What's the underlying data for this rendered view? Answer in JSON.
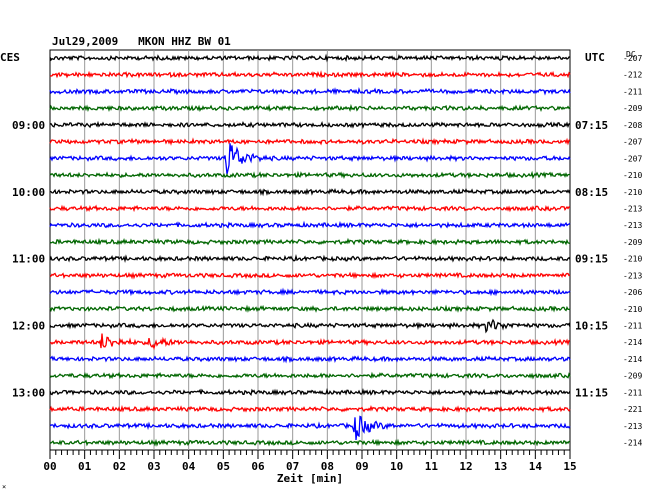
{
  "chart_data": {
    "type": "line",
    "title": "Jul29,2009   MKON HHZ BW 01",
    "left_axis_label": "CES",
    "right_axis_label": "UTC",
    "offset_column_label": "DC",
    "xlabel": "Zeit [min]",
    "xlim": [
      0,
      15
    ],
    "x_ticks": [
      "00",
      "01",
      "02",
      "03",
      "04",
      "05",
      "06",
      "07",
      "08",
      "09",
      "10",
      "11",
      "12",
      "13",
      "14",
      "15"
    ],
    "grid": true,
    "trace_colors": [
      "#000000",
      "#ff0000",
      "#0000ff",
      "#006600"
    ],
    "left_time_labels": [
      {
        "trace": 4,
        "label": "09:00"
      },
      {
        "trace": 8,
        "label": "10:00"
      },
      {
        "trace": 12,
        "label": "11:00"
      },
      {
        "trace": 16,
        "label": "12:00"
      },
      {
        "trace": 20,
        "label": "13:00"
      }
    ],
    "right_time_labels": [
      {
        "trace": 4,
        "label": "07:15"
      },
      {
        "trace": 8,
        "label": "08:15"
      },
      {
        "trace": 12,
        "label": "09:15"
      },
      {
        "trace": 16,
        "label": "10:15"
      },
      {
        "trace": 20,
        "label": "11:15"
      }
    ],
    "dc_offsets": [
      "-207",
      "-212",
      "-211",
      "-209",
      "-208",
      "-207",
      "-207",
      "-210",
      "-210",
      "-213",
      "-213",
      "-209",
      "-210",
      "-213",
      "-206",
      "-210",
      "-211",
      "-214",
      "-214",
      "-209",
      "-211",
      "-221",
      "-213",
      "-214"
    ],
    "events": [
      {
        "trace": 6,
        "minute": 5.1,
        "amplitude": 1.0
      },
      {
        "trace": 16,
        "minute": 12.6,
        "amplitude": 0.3
      },
      {
        "trace": 17,
        "minute": 1.5,
        "amplitude": 0.35
      },
      {
        "trace": 17,
        "minute": 2.9,
        "amplitude": 0.3
      },
      {
        "trace": 22,
        "minute": 8.8,
        "amplitude": 0.6
      }
    ]
  }
}
